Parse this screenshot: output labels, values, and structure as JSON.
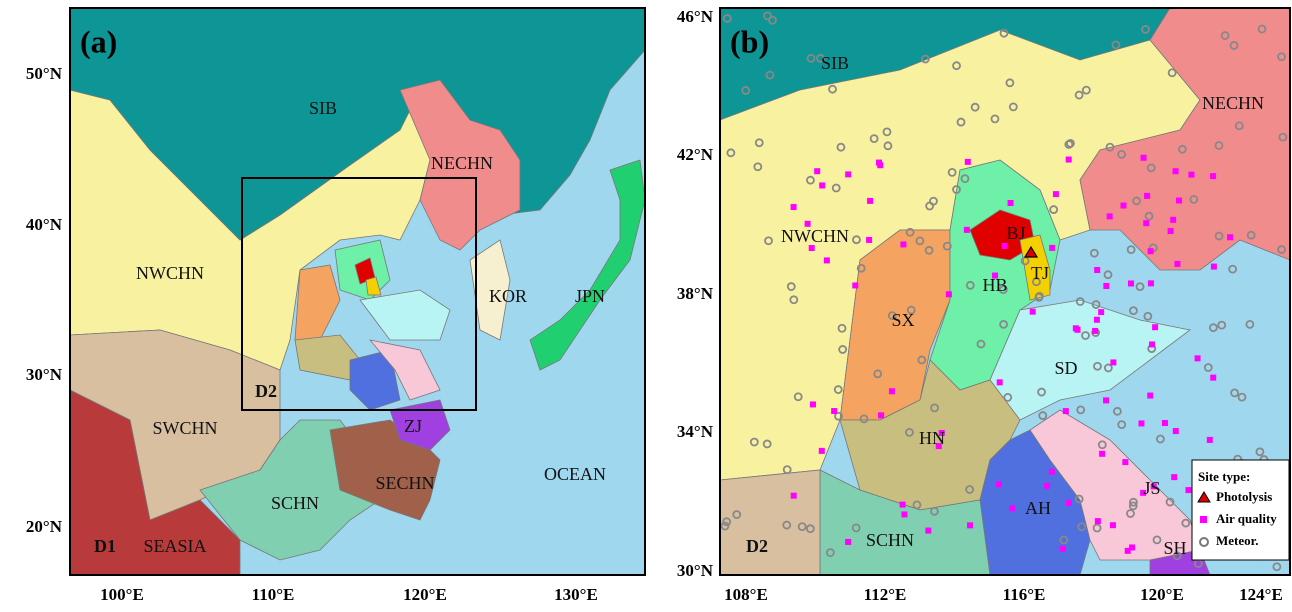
{
  "panels": [
    {
      "label": "(a)",
      "domain_label": "D1",
      "lat_ticks": [
        "50°N",
        "40°N",
        "30°N",
        "20°N"
      ],
      "lon_ticks": [
        "100°E",
        "110°E",
        "120°E",
        "130°E"
      ],
      "regions": [
        "SIB",
        "NWCHN",
        "NECHN",
        "KOR",
        "JPN",
        "SWCHN",
        "SEASIA",
        "SCHN",
        "SECHN",
        "ZJ",
        "OCEAN",
        "D2"
      ]
    },
    {
      "label": "(b)",
      "domain_label": "D2",
      "lat_ticks": [
        "46°N",
        "42°N",
        "38°N",
        "34°N",
        "30°N"
      ],
      "lon_ticks": [
        "108°E",
        "112°E",
        "116°E",
        "120°E",
        "124°E"
      ],
      "regions": [
        "SIB",
        "NECHN",
        "NWCHN",
        "BJ",
        "TJ",
        "HB",
        "SX",
        "SD",
        "HN",
        "JS",
        "AH",
        "SCHN",
        "SH"
      ]
    }
  ],
  "legend": {
    "title": "Site type:",
    "items": [
      "Photolysis",
      "Air quality",
      "Meteor."
    ]
  }
}
